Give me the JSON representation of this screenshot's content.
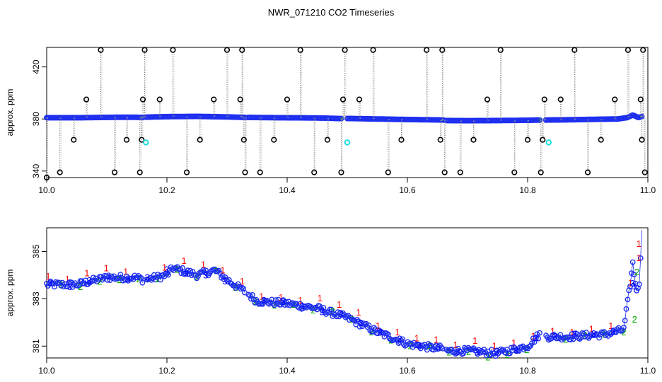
{
  "page": {
    "title": "NWR_071210  CO2 Timeseries"
  },
  "chart_data": [
    {
      "type": "scatter",
      "panel": "top",
      "title": "",
      "xlabel": "",
      "ylabel": "approx. ppm",
      "xlim": [
        10.0,
        11.0
      ],
      "ylim": [
        335,
        435
      ],
      "xticks": [
        "10.0",
        "10.2",
        "10.4",
        "10.6",
        "10.8",
        "11.0"
      ],
      "xtick_values": [
        10.0,
        10.2,
        10.4,
        10.6,
        10.8,
        11.0
      ],
      "yticks": [
        "340",
        "380",
        "420"
      ],
      "ytick_values": [
        340,
        380,
        420
      ],
      "baseline_segments": [
        {
          "x": [
            10.0,
            10.03,
            10.06,
            10.09,
            10.12,
            10.15,
            10.16
          ],
          "y": [
            381,
            381,
            381,
            381.2,
            381.3,
            381.3,
            381.2
          ]
        },
        {
          "x": [
            10.165,
            10.2,
            10.25,
            10.3,
            10.33
          ],
          "y": [
            381.4,
            381.8,
            382,
            381.6,
            381.2
          ]
        },
        {
          "x": [
            10.335,
            10.38,
            10.42,
            10.46,
            10.49
          ],
          "y": [
            381.2,
            381.0,
            380.9,
            380.7,
            380.3
          ]
        },
        {
          "x": [
            10.5,
            10.55,
            10.6,
            10.65,
            10.66
          ],
          "y": [
            380.4,
            380.0,
            379.6,
            379.3,
            379.2
          ]
        },
        {
          "x": [
            10.665,
            10.7,
            10.75,
            10.8,
            10.82
          ],
          "y": [
            378.8,
            378.7,
            378.8,
            379.0,
            379.2
          ]
        },
        {
          "x": [
            10.83,
            10.87,
            10.92,
            10.95,
            10.965,
            10.975,
            10.985,
            10.99
          ],
          "y": [
            379.2,
            379.4,
            379.8,
            380.0,
            381,
            383,
            381,
            382
          ]
        }
      ],
      "flagged_points": {
        "x": [
          10.0,
          10.022,
          10.045,
          10.066,
          10.09,
          10.113,
          10.133,
          10.155,
          10.158,
          10.16,
          10.163,
          10.188,
          10.21,
          10.233,
          10.255,
          10.278,
          10.3,
          10.322,
          10.325,
          10.328,
          10.33,
          10.355,
          10.378,
          10.4,
          10.422,
          10.445,
          10.467,
          10.49,
          10.493,
          10.496,
          10.52,
          10.543,
          10.568,
          10.59,
          10.632,
          10.655,
          10.658,
          10.662,
          10.688,
          10.71,
          10.733,
          10.755,
          10.778,
          10.8,
          10.822,
          10.825,
          10.828,
          10.855,
          10.878,
          10.9,
          10.922,
          10.945,
          10.967,
          10.988,
          10.99,
          10.992,
          10.995
        ],
        "y": [
          335,
          339,
          364,
          395,
          433,
          339,
          364,
          339,
          364,
          395,
          433,
          395,
          433,
          339,
          364,
          395,
          433,
          395,
          433,
          364,
          339,
          339,
          364,
          395,
          433,
          339,
          364,
          339,
          395,
          433,
          395,
          433,
          339,
          364,
          433,
          364,
          433,
          339,
          339,
          364,
          395,
          433,
          339,
          364,
          339,
          364,
          395,
          395,
          433,
          339,
          364,
          395,
          433,
          395,
          364,
          433,
          339
        ]
      },
      "cyan_points": {
        "x": [
          10.165,
          10.5,
          10.835
        ],
        "y": [
          362,
          362,
          362
        ]
      }
    },
    {
      "type": "scatter",
      "panel": "bottom",
      "title": "",
      "xlabel": "",
      "ylabel": "approx. ppm",
      "xlim": [
        10.0,
        11.0
      ],
      "ylim": [
        380.5,
        386.0
      ],
      "xticks": [
        "10.0",
        "10.2",
        "10.4",
        "10.6",
        "10.8",
        "11.0"
      ],
      "xtick_values": [
        10.0,
        10.2,
        10.4,
        10.6,
        10.8,
        11.0
      ],
      "yticks": [
        "381",
        "383",
        "385"
      ],
      "ytick_values": [
        381,
        383,
        385
      ],
      "key_x": [
        10.0,
        10.05,
        10.1,
        10.15,
        10.16,
        10.165,
        10.2,
        10.21,
        10.25,
        10.28,
        10.3,
        10.33,
        10.35,
        10.4,
        10.45,
        10.5,
        10.55,
        10.6,
        10.65,
        10.66,
        10.665,
        10.7,
        10.75,
        10.8,
        10.82,
        10.83,
        10.87,
        10.93,
        10.96,
        10.97,
        10.975,
        10.98,
        10.985,
        10.99
      ],
      "key_y": [
        383.6,
        383.6,
        383.9,
        383.9,
        383.8,
        383.8,
        384.0,
        384.3,
        384.0,
        384.2,
        383.8,
        383.3,
        382.9,
        382.8,
        382.6,
        382.2,
        381.6,
        381.1,
        380.9,
        380.9,
        380.8,
        380.8,
        380.7,
        381.0,
        381.5,
        381.4,
        381.4,
        381.5,
        381.7,
        383.5,
        384.5,
        383.5,
        383.3,
        386.0
      ],
      "gaps": [
        [
          10.16,
          10.165
        ],
        [
          10.33,
          10.335
        ],
        [
          10.66,
          10.665
        ],
        [
          10.82,
          10.83
        ]
      ],
      "series": [
        {
          "name": "1",
          "color": "#ff0000"
        },
        {
          "name": "2",
          "color": "#00aa00"
        },
        {
          "name": "3",
          "color": "#0000ff"
        }
      ]
    }
  ]
}
